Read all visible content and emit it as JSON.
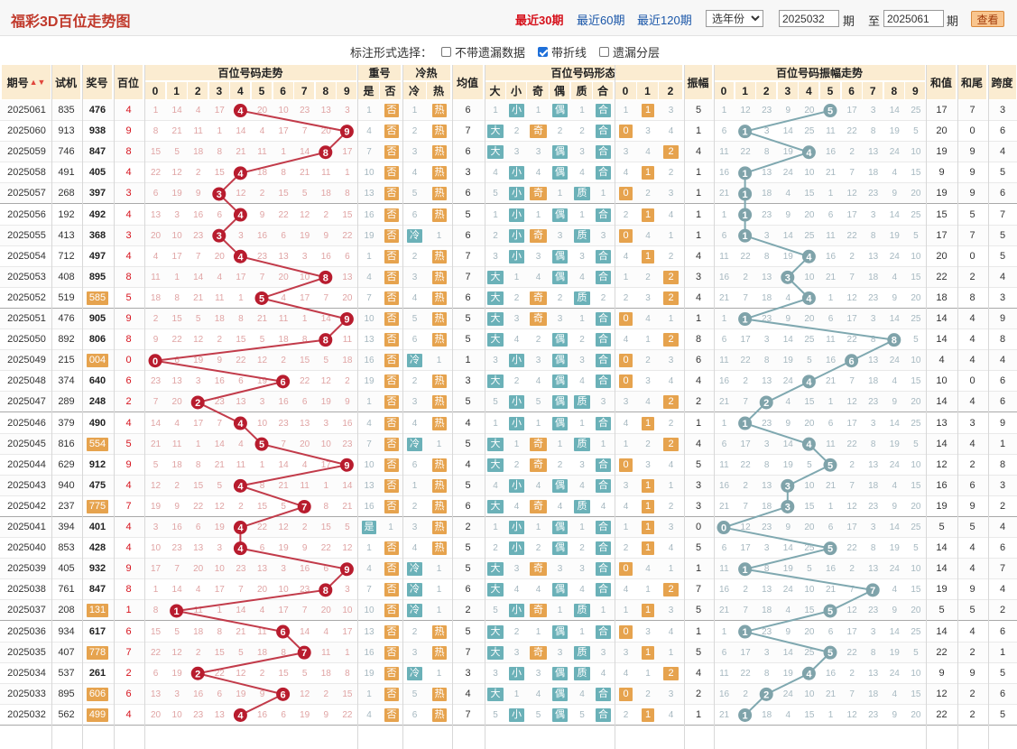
{
  "header": {
    "title": "福彩3D百位走势图",
    "periods": [
      {
        "label": "最近30期",
        "active": true
      },
      {
        "label": "最近60期",
        "active": false
      },
      {
        "label": "最近120期",
        "active": false
      }
    ],
    "year_select": "选年份",
    "from_issue": "2025032",
    "from_label": "期",
    "to_label": "至",
    "to_issue": "2025061",
    "to_suffix": "期",
    "query_button": "查看"
  },
  "options": {
    "label": "标注形式选择：",
    "items": [
      {
        "label": "不带遗漏数据",
        "checked": false
      },
      {
        "label": "带折线",
        "checked": true
      },
      {
        "label": "遗漏分层",
        "checked": false
      }
    ]
  },
  "columns": {
    "issue": "期号",
    "test": "试机",
    "prize": "奖号",
    "hundreds": "百位",
    "trend_group": "百位号码走势",
    "repeat_group": "重号",
    "repeat_yes": "是",
    "repeat_no": "否",
    "hotcold_group": "冷热",
    "cold": "冷",
    "hot": "热",
    "avg": "均值",
    "shape_group": "百位号码形态",
    "big": "大",
    "small": "小",
    "odd": "奇",
    "even": "偶",
    "prime": "质",
    "composite": "合",
    "r0": "0",
    "r1": "1",
    "r2": "2",
    "amp": "振幅",
    "amp_group": "百位号码振幅走势",
    "sum": "和值",
    "tail": "和尾",
    "span": "跨度",
    "digits": [
      "0",
      "1",
      "2",
      "3",
      "4",
      "5",
      "6",
      "7",
      "8",
      "9"
    ]
  },
  "colors": {
    "accent": "#d6121c",
    "line_red": "#c23b4a",
    "line_teal": "#7fa8b0",
    "header_bg": "#fbecd1",
    "chip_orange": "#e6a34e",
    "chip_teal": "#6bb1b8"
  },
  "rows": [
    {
      "issue": "2025061",
      "test": "835",
      "prize": "476",
      "h": 4,
      "big": 0,
      "odd": 0,
      "prime": 0,
      "rem": 1,
      "hot": 1,
      "amp": 5,
      "avg": "6",
      "sum": "17",
      "tail": "7",
      "span": "3"
    },
    {
      "issue": "2025060",
      "test": "913",
      "prize": "938",
      "h": 9,
      "big": 1,
      "odd": 1,
      "prime": 0,
      "rem": 0,
      "hot": 1,
      "amp": 1,
      "avg": "7",
      "sum": "20",
      "tail": "0",
      "span": "6"
    },
    {
      "issue": "2025059",
      "test": "746",
      "prize": "847",
      "h": 8,
      "big": 1,
      "odd": 0,
      "prime": 0,
      "rem": 2,
      "hot": 1,
      "amp": 4,
      "avg": "6",
      "sum": "19",
      "tail": "9",
      "span": "4"
    },
    {
      "issue": "2025058",
      "test": "491",
      "prize": "405",
      "h": 4,
      "big": 0,
      "odd": 0,
      "prime": 0,
      "rem": 1,
      "hot": 1,
      "amp": 1,
      "avg": "3",
      "sum": "9",
      "tail": "9",
      "span": "5"
    },
    {
      "issue": "2025057",
      "test": "268",
      "prize": "397",
      "h": 3,
      "big": 0,
      "odd": 1,
      "prime": 1,
      "rem": 0,
      "hot": 1,
      "amp": 1,
      "avg": "6",
      "sum": "19",
      "tail": "9",
      "span": "6"
    },
    {
      "issue": "2025056",
      "test": "192",
      "prize": "492",
      "h": 4,
      "big": 0,
      "odd": 0,
      "prime": 0,
      "rem": 1,
      "hot": 1,
      "amp": 1,
      "avg": "5",
      "sum": "15",
      "tail": "5",
      "span": "7"
    },
    {
      "issue": "2025055",
      "test": "413",
      "prize": "368",
      "h": 3,
      "big": 0,
      "odd": 1,
      "prime": 1,
      "rem": 0,
      "hot": 0,
      "amp": 1,
      "avg": "6",
      "sum": "17",
      "tail": "7",
      "span": "5"
    },
    {
      "issue": "2025054",
      "test": "712",
      "prize": "497",
      "h": 4,
      "big": 0,
      "odd": 0,
      "prime": 0,
      "rem": 1,
      "hot": 1,
      "amp": 4,
      "avg": "7",
      "sum": "20",
      "tail": "0",
      "span": "5"
    },
    {
      "issue": "2025053",
      "test": "408",
      "prize": "895",
      "h": 8,
      "big": 1,
      "odd": 0,
      "prime": 0,
      "rem": 2,
      "hot": 1,
      "amp": 3,
      "avg": "7",
      "sum": "22",
      "tail": "2",
      "span": "4"
    },
    {
      "issue": "2025052",
      "test": "519",
      "prize": "585",
      "h": 5,
      "big": 1,
      "odd": 1,
      "prime": 1,
      "rem": 2,
      "hot": 1,
      "amp": 4,
      "avg": "6",
      "sum": "18",
      "tail": "8",
      "span": "3",
      "ptag": true
    },
    {
      "issue": "2025051",
      "test": "476",
      "prize": "905",
      "h": 9,
      "big": 1,
      "odd": 1,
      "prime": 0,
      "rem": 0,
      "hot": 1,
      "amp": 1,
      "avg": "5",
      "sum": "14",
      "tail": "4",
      "span": "9"
    },
    {
      "issue": "2025050",
      "test": "892",
      "prize": "806",
      "h": 8,
      "big": 1,
      "odd": 0,
      "prime": 0,
      "rem": 2,
      "hot": 1,
      "amp": 8,
      "avg": "5",
      "sum": "14",
      "tail": "4",
      "span": "8"
    },
    {
      "issue": "2025049",
      "test": "215",
      "prize": "004",
      "h": 0,
      "big": 0,
      "odd": 0,
      "prime": 0,
      "rem": 0,
      "hot": 0,
      "amp": 6,
      "avg": "1",
      "sum": "4",
      "tail": "4",
      "span": "4",
      "ptag": true
    },
    {
      "issue": "2025048",
      "test": "374",
      "prize": "640",
      "h": 6,
      "big": 1,
      "odd": 0,
      "prime": 0,
      "rem": 0,
      "hot": 1,
      "amp": 4,
      "avg": "3",
      "sum": "10",
      "tail": "0",
      "span": "6"
    },
    {
      "issue": "2025047",
      "test": "289",
      "prize": "248",
      "h": 2,
      "big": 0,
      "odd": 0,
      "prime": 1,
      "rem": 2,
      "hot": 1,
      "amp": 2,
      "avg": "5",
      "sum": "14",
      "tail": "4",
      "span": "6"
    },
    {
      "issue": "2025046",
      "test": "379",
      "prize": "490",
      "h": 4,
      "big": 0,
      "odd": 0,
      "prime": 0,
      "rem": 1,
      "hot": 1,
      "amp": 1,
      "avg": "4",
      "sum": "13",
      "tail": "3",
      "span": "9"
    },
    {
      "issue": "2025045",
      "test": "816",
      "prize": "554",
      "h": 5,
      "big": 1,
      "odd": 1,
      "prime": 1,
      "rem": 2,
      "hot": 0,
      "amp": 4,
      "avg": "5",
      "sum": "14",
      "tail": "4",
      "span": "1",
      "ptag": true
    },
    {
      "issue": "2025044",
      "test": "629",
      "prize": "912",
      "h": 9,
      "big": 1,
      "odd": 1,
      "prime": 0,
      "rem": 0,
      "hot": 1,
      "amp": 5,
      "avg": "4",
      "sum": "12",
      "tail": "2",
      "span": "8"
    },
    {
      "issue": "2025043",
      "test": "940",
      "prize": "475",
      "h": 4,
      "big": 0,
      "odd": 0,
      "prime": 0,
      "rem": 1,
      "hot": 1,
      "amp": 3,
      "avg": "5",
      "sum": "16",
      "tail": "6",
      "span": "3"
    },
    {
      "issue": "2025042",
      "test": "237",
      "prize": "775",
      "h": 7,
      "big": 1,
      "odd": 1,
      "prime": 1,
      "rem": 1,
      "hot": 1,
      "amp": 3,
      "avg": "6",
      "sum": "19",
      "tail": "9",
      "span": "2",
      "ptag": true
    },
    {
      "issue": "2025041",
      "test": "394",
      "prize": "401",
      "h": 4,
      "big": 0,
      "odd": 0,
      "prime": 0,
      "rem": 1,
      "hot": 1,
      "amp": 0,
      "avg": "2",
      "sum": "5",
      "tail": "5",
      "span": "4",
      "rep": true
    },
    {
      "issue": "2025040",
      "test": "853",
      "prize": "428",
      "h": 4,
      "big": 0,
      "odd": 0,
      "prime": 0,
      "rem": 1,
      "hot": 1,
      "amp": 5,
      "avg": "5",
      "sum": "14",
      "tail": "4",
      "span": "6"
    },
    {
      "issue": "2025039",
      "test": "405",
      "prize": "932",
      "h": 9,
      "big": 1,
      "odd": 1,
      "prime": 0,
      "rem": 0,
      "hot": 0,
      "amp": 1,
      "avg": "5",
      "sum": "14",
      "tail": "4",
      "span": "7"
    },
    {
      "issue": "2025038",
      "test": "761",
      "prize": "847",
      "h": 8,
      "big": 1,
      "odd": 0,
      "prime": 0,
      "rem": 2,
      "hot": 0,
      "amp": 7,
      "avg": "6",
      "sum": "19",
      "tail": "9",
      "span": "4"
    },
    {
      "issue": "2025037",
      "test": "208",
      "prize": "131",
      "h": 1,
      "big": 0,
      "odd": 1,
      "prime": 1,
      "rem": 1,
      "hot": 0,
      "amp": 5,
      "avg": "2",
      "sum": "5",
      "tail": "5",
      "span": "2",
      "ptag": true
    },
    {
      "issue": "2025036",
      "test": "934",
      "prize": "617",
      "h": 6,
      "big": 1,
      "odd": 0,
      "prime": 0,
      "rem": 0,
      "hot": 1,
      "amp": 1,
      "avg": "5",
      "sum": "14",
      "tail": "4",
      "span": "6"
    },
    {
      "issue": "2025035",
      "test": "407",
      "prize": "778",
      "h": 7,
      "big": 1,
      "odd": 1,
      "prime": 1,
      "rem": 1,
      "hot": 1,
      "amp": 5,
      "avg": "7",
      "sum": "22",
      "tail": "2",
      "span": "1",
      "ptag": true
    },
    {
      "issue": "2025034",
      "test": "537",
      "prize": "261",
      "h": 2,
      "big": 0,
      "odd": 0,
      "prime": 1,
      "rem": 2,
      "hot": 0,
      "amp": 4,
      "avg": "3",
      "sum": "9",
      "tail": "9",
      "span": "5"
    },
    {
      "issue": "2025033",
      "test": "895",
      "prize": "606",
      "h": 6,
      "big": 1,
      "odd": 0,
      "prime": 0,
      "rem": 0,
      "hot": 1,
      "amp": 2,
      "avg": "4",
      "sum": "12",
      "tail": "2",
      "span": "6",
      "ptag": true
    },
    {
      "issue": "2025032",
      "test": "562",
      "prize": "499",
      "h": 4,
      "big": 0,
      "odd": 0,
      "prime": 0,
      "rem": 1,
      "hot": 1,
      "amp": 1,
      "avg": "7",
      "sum": "22",
      "tail": "2",
      "span": "5",
      "ptag": true
    }
  ]
}
